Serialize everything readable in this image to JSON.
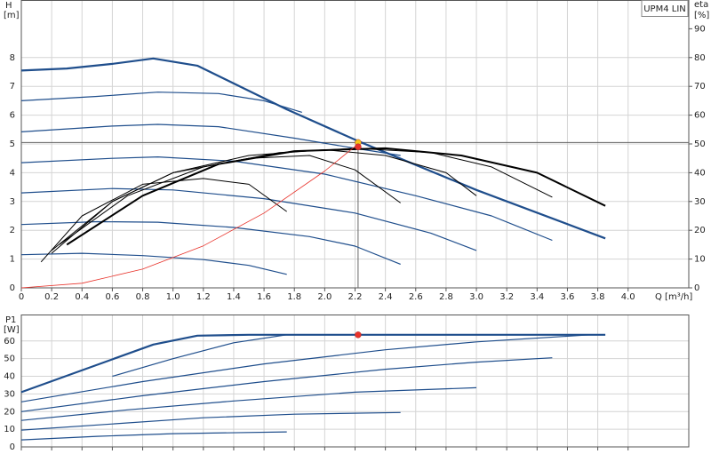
{
  "chart_data": [
    {
      "type": "line",
      "annotation": "UPM4 LIN",
      "x_label": "Q [m³/h]",
      "y_label": "H",
      "y_unit": "[m]",
      "y2_label": "eta",
      "y2_unit": "[%]",
      "xlim": [
        0,
        4.4
      ],
      "ylim": [
        0,
        10
      ],
      "y2lim": [
        0,
        100
      ],
      "grid": true,
      "show_xtick_labels": true,
      "xticks": [
        0,
        0.2,
        0.4,
        0.6,
        0.8,
        {
          "value": 1,
          "label": "1.0"
        },
        1.2,
        1.4,
        1.6,
        1.8,
        {
          "value": 2,
          "label": "2.0"
        },
        2.2,
        2.4,
        2.6,
        2.8,
        {
          "value": 3,
          "label": "3.0"
        },
        3.2,
        3.4,
        3.6,
        3.8,
        {
          "value": 4,
          "label": "4.0"
        }
      ],
      "yticks": [
        0,
        1,
        2,
        3,
        4,
        5,
        6,
        7,
        8
      ],
      "y2ticks": [
        0,
        10,
        20,
        30,
        40,
        50,
        60,
        70,
        80,
        90
      ],
      "series": [
        {
          "color": "#1f4e8c",
          "width": 2.2,
          "x": [
            0,
            0.3,
            0.6,
            0.87,
            1.16,
            1.75,
            2.22,
            3.0,
            3.85
          ],
          "values": [
            7.55,
            7.62,
            7.78,
            7.97,
            7.72,
            6.2,
            5.1,
            3.4,
            1.72
          ]
        },
        {
          "color": "#1f4e8c",
          "width": 1.2,
          "x": [
            0,
            0.5,
            0.9,
            1.3,
            1.6,
            1.85
          ],
          "values": [
            6.5,
            6.65,
            6.8,
            6.75,
            6.5,
            6.1
          ]
        },
        {
          "color": "#1f4e8c",
          "width": 1.2,
          "x": [
            0,
            0.6,
            0.9,
            1.3,
            1.8,
            2.2,
            2.5
          ],
          "values": [
            5.42,
            5.62,
            5.68,
            5.6,
            5.2,
            4.85,
            4.6
          ]
        },
        {
          "color": "#1f4e8c",
          "width": 1.2,
          "x": [
            0,
            0.6,
            0.9,
            1.4,
            2.0,
            2.6,
            3.1,
            3.5
          ],
          "values": [
            4.35,
            4.5,
            4.55,
            4.4,
            3.95,
            3.2,
            2.5,
            1.65
          ]
        },
        {
          "color": "#1f4e8c",
          "width": 1.2,
          "x": [
            0,
            0.6,
            1.0,
            1.6,
            2.2,
            2.7,
            3.0
          ],
          "values": [
            3.3,
            3.45,
            3.4,
            3.1,
            2.6,
            1.9,
            1.3
          ]
        },
        {
          "color": "#1f4e8c",
          "width": 1.2,
          "x": [
            0,
            0.5,
            0.9,
            1.4,
            1.9,
            2.2,
            2.5
          ],
          "values": [
            2.2,
            2.3,
            2.28,
            2.1,
            1.78,
            1.45,
            0.82
          ]
        },
        {
          "color": "#1f4e8c",
          "width": 1.2,
          "x": [
            0,
            0.4,
            0.8,
            1.2,
            1.5,
            1.75
          ],
          "values": [
            1.15,
            1.2,
            1.12,
            0.98,
            0.78,
            0.47
          ]
        },
        {
          "color": "#000000",
          "width": 1,
          "axis": "y2",
          "x": [
            0.13,
            0.4,
            0.8,
            1.2,
            1.5,
            1.75
          ],
          "values": [
            9,
            25,
            36,
            38,
            36,
            26.5
          ]
        },
        {
          "color": "#000000",
          "width": 1,
          "axis": "y2",
          "x": [
            0.2,
            0.6,
            1.0,
            1.5,
            1.9,
            2.2,
            2.5
          ],
          "values": [
            12,
            30,
            40,
            45,
            46,
            41,
            29.5
          ]
        },
        {
          "color": "#000000",
          "width": 1,
          "axis": "y2",
          "x": [
            0.2,
            0.6,
            1.0,
            1.5,
            2.0,
            2.4,
            2.8,
            3.0
          ],
          "values": [
            13,
            30,
            40,
            46,
            48,
            46,
            40,
            32
          ]
        },
        {
          "color": "#000000",
          "width": 1,
          "axis": "y2",
          "x": [
            0.25,
            0.7,
            1.2,
            1.7,
            2.2,
            2.7,
            3.1,
            3.5
          ],
          "values": [
            15,
            32,
            42,
            47,
            48.5,
            47,
            42,
            31.5
          ]
        },
        {
          "color": "#000000",
          "width": 2,
          "axis": "y2",
          "x": [
            0.3,
            0.8,
            1.3,
            1.8,
            2.4,
            2.9,
            3.4,
            3.85
          ],
          "values": [
            15,
            32,
            43,
            47.5,
            48.5,
            46,
            40,
            28.5
          ]
        },
        {
          "color": "#e8322a",
          "width": 0.8,
          "x": [
            0,
            0.4,
            0.8,
            1.2,
            1.6,
            2.0,
            2.22
          ],
          "values": [
            0,
            0.16,
            0.65,
            1.46,
            2.6,
            4.06,
            5.0
          ]
        }
      ],
      "duty_lines": {
        "color": "#666666",
        "x": 2.22,
        "y": 5.05
      },
      "markers": [
        {
          "color": "#f5c518",
          "x": 2.22,
          "y": 5.05
        },
        {
          "color": "#e8322a",
          "x": 2.22,
          "y": 4.9
        }
      ]
    },
    {
      "type": "line",
      "y_label": "P1",
      "y_unit": "[W]",
      "xlim": [
        0,
        4.4
      ],
      "ylim": [
        0,
        75
      ],
      "grid": true,
      "show_xtick_labels": false,
      "xticks": [
        0,
        0.2,
        0.4,
        0.6,
        0.8,
        1,
        1.2,
        1.4,
        1.6,
        1.8,
        2,
        2.2,
        2.4,
        2.6,
        2.8,
        3,
        3.2,
        3.4,
        3.6,
        3.8,
        4
      ],
      "yticks": [
        0,
        10,
        20,
        30,
        40,
        50,
        60
      ],
      "series": [
        {
          "color": "#1f4e8c",
          "width": 2.2,
          "x": [
            0,
            0.87,
            1.16,
            1.5,
            3.85
          ],
          "values": [
            31,
            58,
            63,
            63.5,
            63.5
          ]
        },
        {
          "color": "#1f4e8c",
          "width": 1.2,
          "x": [
            0.6,
            1.0,
            1.4,
            1.75
          ],
          "values": [
            40,
            50,
            59,
            63.5
          ]
        },
        {
          "color": "#1f4e8c",
          "width": 1.2,
          "x": [
            0,
            0.8,
            1.6,
            2.4,
            3.0,
            3.75
          ],
          "values": [
            25.5,
            37,
            47,
            55,
            59.5,
            63.5
          ]
        },
        {
          "color": "#1f4e8c",
          "width": 1.2,
          "x": [
            0,
            0.8,
            1.6,
            2.4,
            3.0,
            3.5
          ],
          "values": [
            20,
            29,
            37,
            44,
            48,
            50.5
          ]
        },
        {
          "color": "#1f4e8c",
          "width": 1.2,
          "x": [
            0,
            0.7,
            1.4,
            2.2,
            3.0
          ],
          "values": [
            15,
            21,
            26,
            31,
            33.5
          ]
        },
        {
          "color": "#1f4e8c",
          "width": 1.2,
          "x": [
            0,
            0.6,
            1.2,
            1.8,
            2.5
          ],
          "values": [
            9.5,
            13,
            16.5,
            18.5,
            19.5
          ]
        },
        {
          "color": "#1f4e8c",
          "width": 1.2,
          "x": [
            0,
            0.5,
            1.0,
            1.75
          ],
          "values": [
            4,
            6,
            7.5,
            8.5
          ]
        }
      ],
      "markers": [
        {
          "color": "#e8322a",
          "x": 2.22,
          "y": 63.5
        }
      ]
    }
  ]
}
